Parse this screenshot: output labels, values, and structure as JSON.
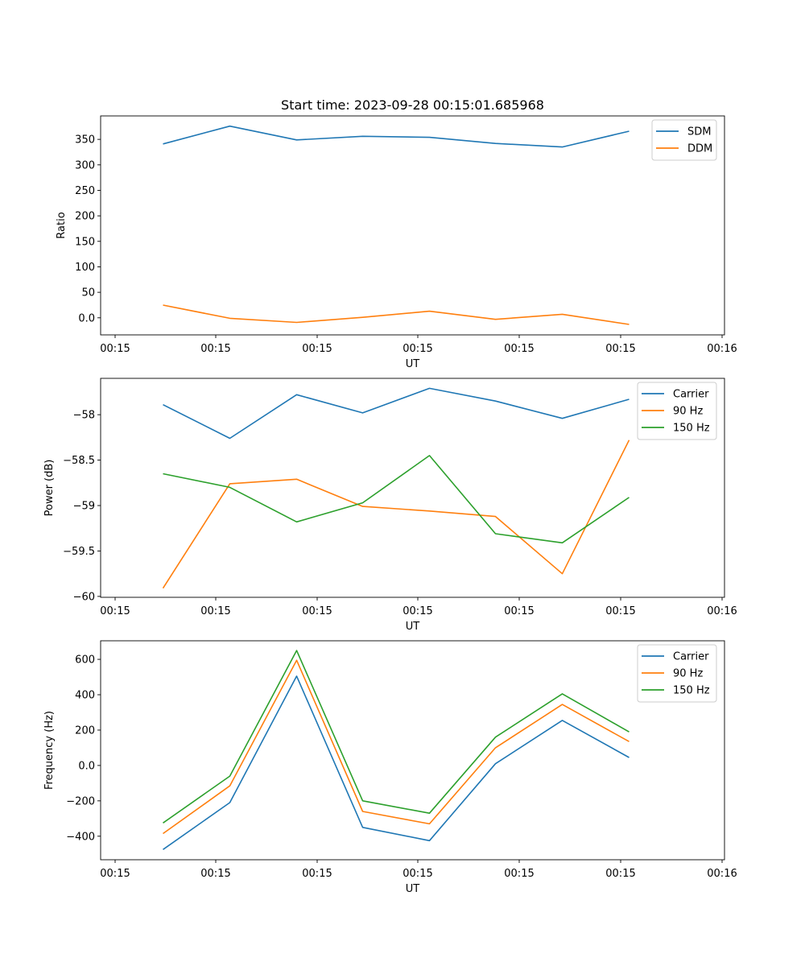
{
  "chart_data": [
    {
      "type": "line",
      "title": "Start time: 2023-09-28 00:15:01.685968",
      "xlabel": "UT",
      "ylabel": "Ratio",
      "xticks": [
        "00:15",
        "00:15",
        "00:15",
        "00:15",
        "00:15",
        "00:15",
        "00:16"
      ],
      "yticks": [
        0,
        50,
        100,
        150,
        200,
        250,
        300,
        350
      ],
      "ylim": [
        -33.5,
        396
      ],
      "legend_position": "top-right",
      "series": [
        {
          "name": "SDM",
          "color": "#1f77b4",
          "values": [
            341,
            376,
            349,
            356,
            354,
            342,
            335,
            366
          ]
        },
        {
          "name": "DDM",
          "color": "#ff7f0e",
          "values": [
            25,
            -1,
            -9,
            1,
            13,
            -3,
            7,
            -13
          ]
        }
      ]
    },
    {
      "type": "line",
      "title": "",
      "xlabel": "UT",
      "ylabel": "Power (dB)",
      "xticks": [
        "00:15",
        "00:15",
        "00:15",
        "00:15",
        "00:15",
        "00:15",
        "00:16"
      ],
      "yticks": [
        -60.0,
        -59.5,
        -59.0,
        -58.5,
        -58.0
      ],
      "ylim": [
        -60.01,
        -57.6
      ],
      "legend_position": "top-right",
      "series": [
        {
          "name": "Carrier",
          "color": "#1f77b4",
          "values": [
            -57.89,
            -58.26,
            -57.78,
            -57.98,
            -57.71,
            -57.85,
            -58.04,
            -57.83
          ]
        },
        {
          "name": "90 Hz",
          "color": "#ff7f0e",
          "values": [
            -59.91,
            -58.76,
            -58.71,
            -59.01,
            -59.06,
            -59.12,
            -59.75,
            -58.28
          ]
        },
        {
          "name": "150 Hz",
          "color": "#2ca02c",
          "values": [
            -58.65,
            -58.8,
            -59.18,
            -58.97,
            -58.45,
            -59.31,
            -59.41,
            -58.91
          ]
        }
      ]
    },
    {
      "type": "line",
      "title": "",
      "xlabel": "UT",
      "ylabel": "Frequency (Hz)",
      "xticks": [
        "00:15",
        "00:15",
        "00:15",
        "00:15",
        "00:15",
        "00:15",
        "00:16"
      ],
      "yticks": [
        -400,
        -200,
        0,
        200,
        400,
        600
      ],
      "ylim": [
        -533,
        705
      ],
      "legend_position": "top-right",
      "series": [
        {
          "name": "Carrier",
          "color": "#1f77b4",
          "values": [
            -475,
            -210,
            505,
            -350,
            -425,
            10,
            255,
            45
          ]
        },
        {
          "name": "90 Hz",
          "color": "#ff7f0e",
          "values": [
            -385,
            -115,
            595,
            -260,
            -330,
            100,
            345,
            135
          ]
        },
        {
          "name": "150 Hz",
          "color": "#2ca02c",
          "values": [
            -325,
            -60,
            650,
            -200,
            -270,
            160,
            405,
            190
          ]
        }
      ]
    }
  ]
}
